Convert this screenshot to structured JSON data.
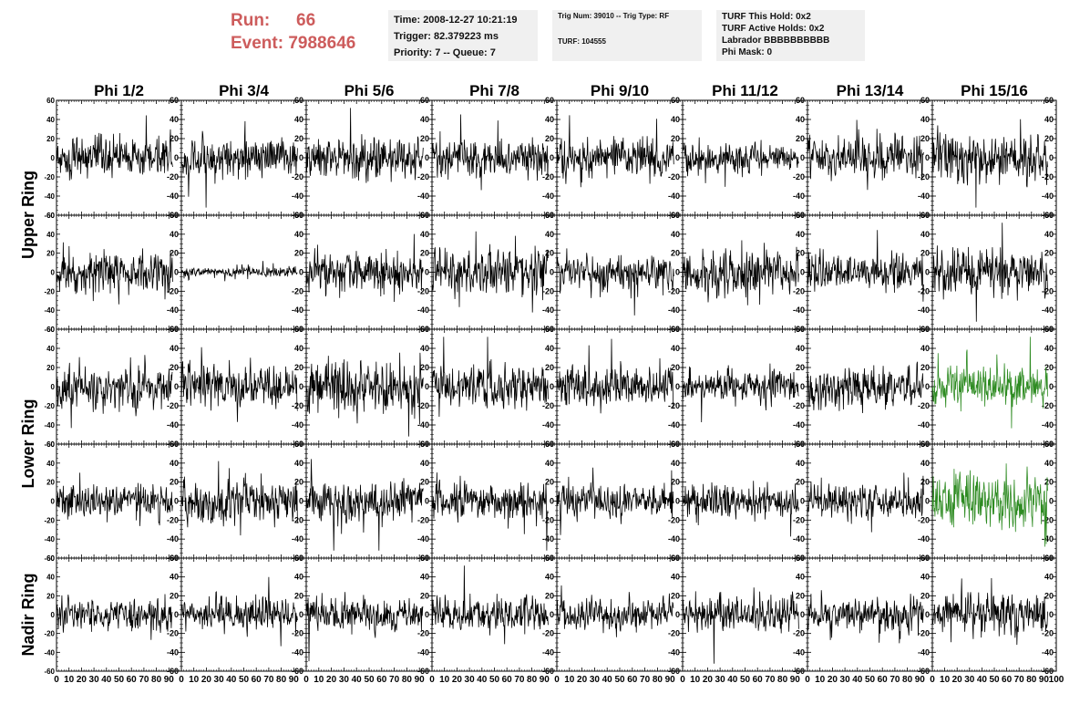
{
  "header": {
    "run_label": "Run:",
    "run_value": "66",
    "event_label": "Event:",
    "event_value": "7988646",
    "time_box": {
      "line1": "Time: 2008-12-27 10:21:19",
      "line2": "Trigger: 82.379223 ms",
      "line3": "Priority: 7 -- Queue: 7"
    },
    "trig_box": {
      "line1": "Trig Num: 39010 -- Trig Type: RF",
      "line2": "TURF: 104555"
    },
    "turf_box": {
      "line1": "TURF This Hold: 0x2",
      "line2": "TURF Active Holds: 0x2",
      "line3": "Labrador BBBBBBBBBB",
      "line4": "Phi Mask: 0"
    }
  },
  "colors": {
    "header_red": "#cd5c5c",
    "info_box_bg": "#f0f0f0",
    "trace_default": "#000000",
    "trace_highlight": "#2e8b22"
  },
  "chart_data": {
    "type": "line",
    "columns": [
      "Phi 1/2",
      "Phi 3/4",
      "Phi 5/6",
      "Phi 7/8",
      "Phi 9/10",
      "Phi 11/12",
      "Phi 13/14",
      "Phi 15/16"
    ],
    "row_groups": [
      {
        "label": "Upper Ring",
        "rows": [
          0,
          1
        ]
      },
      {
        "label": "Lower Ring",
        "rows": [
          2,
          3
        ]
      },
      {
        "label": "Nadir Ring",
        "rows": [
          4
        ]
      }
    ],
    "xlim": [
      0,
      100
    ],
    "ylim": [
      -60,
      60
    ],
    "x_ticks": [
      0,
      10,
      20,
      30,
      40,
      50,
      60,
      70,
      80,
      90,
      100
    ],
    "y_ticks": [
      -60,
      -40,
      -20,
      0,
      20,
      40,
      60
    ],
    "samples_per_trace": 260,
    "x_end": 93,
    "amplitude_rms": [
      [
        12,
        11,
        12,
        12,
        11,
        9,
        12,
        15
      ],
      [
        13,
        3,
        12,
        15,
        11,
        14,
        12,
        14
      ],
      [
        13,
        13,
        16,
        13,
        12,
        10,
        12,
        13
      ],
      [
        10,
        13,
        12,
        12,
        10,
        10,
        10,
        15
      ],
      [
        10,
        10,
        10,
        10,
        10,
        10,
        10,
        13
      ]
    ],
    "highlighted_channels": [
      {
        "row": 2,
        "col": 7
      },
      {
        "row": 3,
        "col": 7
      }
    ]
  }
}
